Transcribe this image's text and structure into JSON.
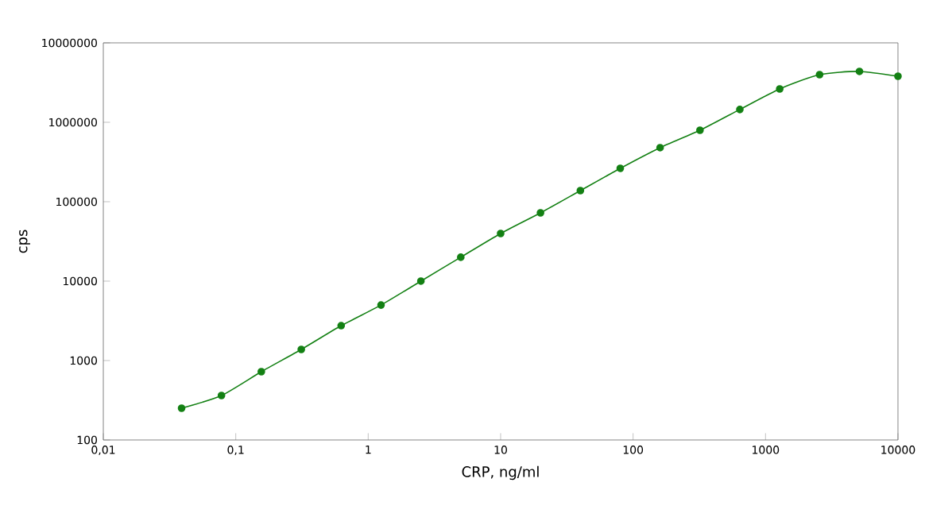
{
  "chart_data": {
    "type": "line",
    "xlabel": "CRP, ng/ml",
    "ylabel": "cps",
    "log": "xy",
    "xlim": [
      0.01,
      10000
    ],
    "ylim": [
      100,
      10000000
    ],
    "xticks": [
      {
        "value": 0.01,
        "label": "0,01"
      },
      {
        "value": 0.1,
        "label": "0,1"
      },
      1,
      10,
      100,
      1000,
      10000
    ],
    "yticks": [
      100,
      1000,
      10000,
      100000,
      1000000,
      10000000
    ],
    "marker": "circle",
    "grid": false,
    "series": [
      {
        "color": "#138013",
        "x": [
          0.039,
          0.078,
          0.156,
          0.3125,
          0.625,
          1.25,
          2.5,
          5,
          10,
          20,
          40,
          80,
          160,
          320,
          640,
          1280,
          2560,
          5120,
          10000
        ],
        "values": [
          251,
          363,
          724,
          1380,
          2750,
          5000,
          10000,
          20000,
          39800,
          72400,
          138000,
          263000,
          479000,
          794000,
          1450000,
          2630000,
          3980000,
          4370000,
          3800000
        ]
      }
    ]
  }
}
